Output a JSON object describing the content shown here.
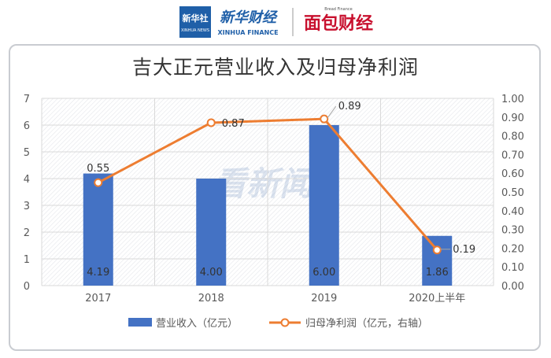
{
  "header": {
    "logo_xinhua_cn": "新华社",
    "logo_xinhua_en": "XINHUA NEWS",
    "logo_finance_cn": "新华财经",
    "logo_finance_en": "XINHUA FINANCE",
    "logo_mianbao_en": "Bread Finance",
    "logo_mianbao_cn": "面包财经"
  },
  "watermark": "看新闻",
  "colors": {
    "bar": "#4472c4",
    "line": "#ed7d31",
    "grid": "#d9d9d9",
    "text": "#595959"
  },
  "chart_data": {
    "type": "bar",
    "title": "吉大正元营业收入及归母净利润",
    "categories": [
      "2017",
      "2018",
      "2019",
      "2020上半年"
    ],
    "series": [
      {
        "name": "营业收入（亿元）",
        "type": "bar",
        "axis": "left",
        "values": [
          4.19,
          4.0,
          6.0,
          1.86
        ],
        "labels": [
          "4.19",
          "4.00",
          "6.00",
          "1.86"
        ]
      },
      {
        "name": "归母净利润（亿元，右轴）",
        "type": "line",
        "axis": "right",
        "values": [
          0.55,
          0.87,
          0.89,
          0.19
        ],
        "labels": [
          "0.55",
          "0.87",
          "0.89",
          "0.19"
        ]
      }
    ],
    "y_left": {
      "range": [
        0,
        7
      ],
      "ticks": [
        "0",
        "1",
        "2",
        "3",
        "4",
        "5",
        "6",
        "7"
      ]
    },
    "y_right": {
      "range": [
        0,
        1
      ],
      "ticks": [
        "0.00",
        "0.10",
        "0.20",
        "0.30",
        "0.40",
        "0.50",
        "0.60",
        "0.70",
        "0.80",
        "0.90",
        "1.00"
      ]
    },
    "grid": true,
    "legend": "bottom"
  }
}
